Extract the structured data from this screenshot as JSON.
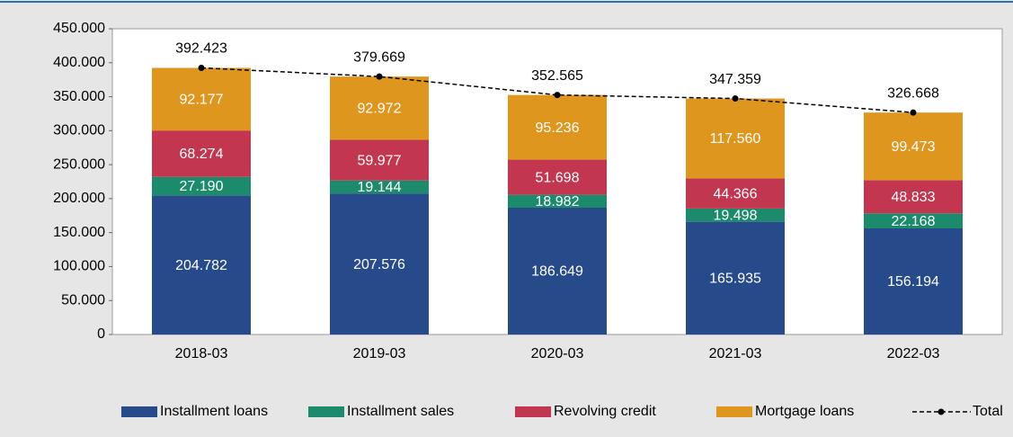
{
  "chart_data": {
    "type": "bar",
    "stacked": true,
    "categories": [
      "2018-03",
      "2019-03",
      "2020-03",
      "2021-03",
      "2022-03"
    ],
    "series": [
      {
        "name": "Installment loans",
        "color": "#264a8a",
        "values": [
          204782,
          207576,
          186649,
          165935,
          156194
        ],
        "value_labels": [
          "204.782",
          "207.576",
          "186.649",
          "165.935",
          "156.194"
        ]
      },
      {
        "name": "Installment sales",
        "color": "#1b8b6b",
        "values": [
          27190,
          19144,
          18982,
          19498,
          22168
        ],
        "value_labels": [
          "27.190",
          "19.144",
          "18.982",
          "19.498",
          "22.168"
        ]
      },
      {
        "name": "Revolving credit",
        "color": "#c3364f",
        "values": [
          68274,
          59977,
          51698,
          44366,
          48833
        ],
        "value_labels": [
          "68.274",
          "59.977",
          "51.698",
          "44.366",
          "48.833"
        ]
      },
      {
        "name": "Mortgage loans",
        "color": "#df961f",
        "values": [
          92177,
          92972,
          95236,
          117560,
          99473
        ],
        "value_labels": [
          "92.177",
          "92.972",
          "95.236",
          "117.560",
          "99.473"
        ]
      },
      {
        "name": "Total",
        "type": "line",
        "color": "#000000",
        "values": [
          392423,
          379669,
          352565,
          347359,
          326668
        ],
        "value_labels": [
          "392.423",
          "379.669",
          "352.565",
          "347.359",
          "326.668"
        ]
      }
    ],
    "ylim": [
      0,
      450000
    ],
    "yticks": [
      0,
      {
        "value": 50000,
        "label": "50.000"
      },
      {
        "value": 100000,
        "label": "100.000"
      },
      {
        "value": 150000,
        "label": "150.000"
      },
      {
        "value": 200000,
        "label": "200.000"
      },
      {
        "value": 250000,
        "label": "250.000"
      },
      {
        "value": 300000,
        "label": "300.000"
      },
      {
        "value": 350000,
        "label": "350.000"
      },
      {
        "value": 400000,
        "label": "400.000"
      },
      {
        "value": 450000,
        "label": "450.000"
      }
    ],
    "grid": false,
    "legend": "bottom"
  }
}
